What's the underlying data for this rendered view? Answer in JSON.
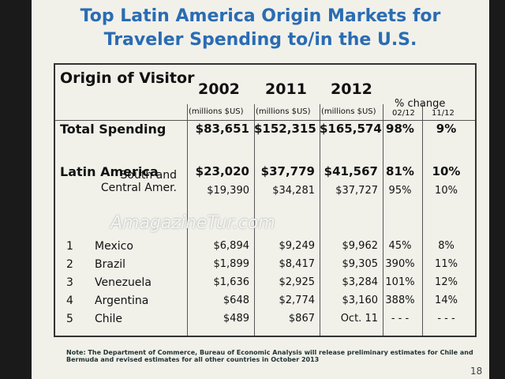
{
  "title": [
    "Top Latin America Origin Markets for",
    "Traveler Spending to/in the U.S."
  ],
  "table": {
    "header": [
      "Origin of Visitor",
      "2002",
      "2011",
      "2012",
      "% change"
    ],
    "units": [
      "(millions $US)",
      "(millions $US)",
      "(millions $US)"
    ],
    "change_periods": [
      "02/12",
      "11/12"
    ],
    "rows": [
      {
        "label": "Total Spending",
        "values": [
          "$83,651",
          "$152,315",
          "$165,574",
          "98%",
          "9%"
        ]
      },
      {
        "label": "Latin America",
        "values": [
          "$23,020",
          "$37,779",
          "$41,567",
          "81%",
          "10%"
        ]
      },
      {
        "label": "South and Central Amer.",
        "values": [
          "$19,390",
          "$34,281",
          "$37,727",
          "95%",
          "10%"
        ]
      },
      {
        "rank": "1",
        "label": "Mexico",
        "values": [
          "$6,894",
          "$9,249",
          "$9,962",
          "45%",
          "8%"
        ]
      },
      {
        "rank": "2",
        "label": "Brazil",
        "values": [
          "$1,899",
          "$8,417",
          "$9,305",
          "390%",
          "11%"
        ]
      },
      {
        "rank": "3",
        "label": "Venezuela",
        "values": [
          "$1,636",
          "$2,925",
          "$3,284",
          "101%",
          "12%"
        ]
      },
      {
        "rank": "4",
        "label": "Argentina",
        "values": [
          "$648",
          "$2,774",
          "$3,160",
          "388%",
          "14%"
        ]
      },
      {
        "rank": "5",
        "label": "Chile",
        "values": [
          "$489",
          "$867",
          "Oct. 11",
          "- - -",
          "- - -"
        ]
      }
    ]
  },
  "watermark": "AmagazineTur.com",
  "note": "Note: The Department of Commerce, Bureau of Economic Analysis will release preliminary estimates for Chile and Bermuda and revised estimates for all other countries in October 2013",
  "page_number": "18"
}
